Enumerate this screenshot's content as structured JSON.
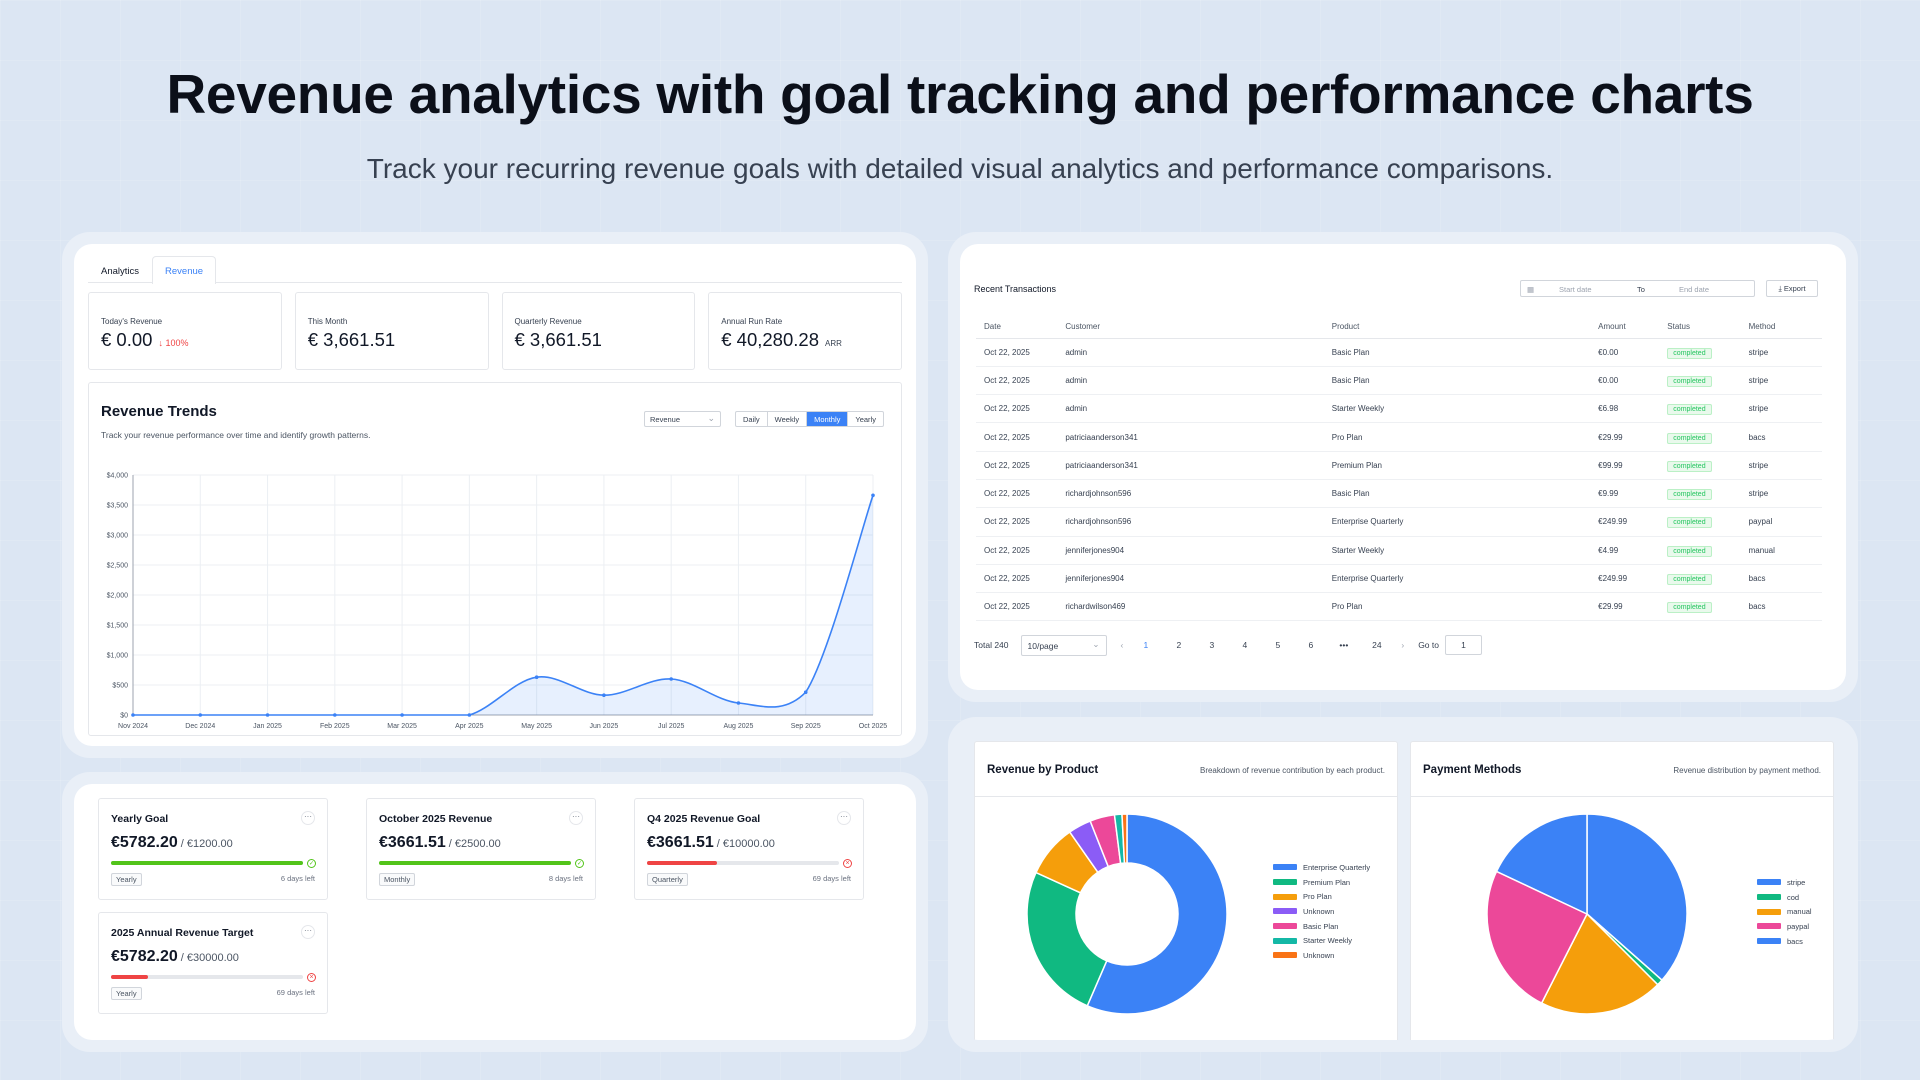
{
  "hero": {
    "title": "Revenue analytics with goal tracking and performance charts",
    "subtitle": "Track your recurring revenue goals with detailed visual analytics and performance comparisons."
  },
  "analytics": {
    "tabs": [
      "Analytics",
      "Revenue"
    ],
    "active_tab": "Revenue",
    "kpis": [
      {
        "label": "Today's Revenue",
        "value": "€ 0.00",
        "change": "↓ 100%"
      },
      {
        "label": "This Month",
        "value": "€ 3,661.51"
      },
      {
        "label": "Quarterly Revenue",
        "value": "€ 3,661.51"
      },
      {
        "label": "Annual Run Rate",
        "value": "€ 40,280.28",
        "suffix": "ARR"
      }
    ],
    "trend": {
      "title": "Revenue Trends",
      "description": "Track your revenue performance over time and identify growth patterns.",
      "metric_select": "Revenue",
      "periods": [
        "Daily",
        "Weekly",
        "Monthly",
        "Yearly"
      ],
      "active_period": "Monthly"
    }
  },
  "chart_data": {
    "type": "area",
    "title": "Revenue Trends",
    "x": [
      "Nov 2024",
      "Dec 2024",
      "Jan 2025",
      "Feb 2025",
      "Mar 2025",
      "Apr 2025",
      "May 2025",
      "Jun 2025",
      "Jul 2025",
      "Aug 2025",
      "Sep 2025",
      "Oct 2025"
    ],
    "values": [
      0,
      0,
      0,
      0,
      0,
      0,
      630,
      330,
      600,
      200,
      380,
      3661.51
    ],
    "yticks": [
      "$0",
      "$500",
      "$1,000",
      "$1,500",
      "$2,000",
      "$2,500",
      "$3,000",
      "$3,500",
      "$4,000"
    ],
    "ylim": [
      0,
      4000
    ],
    "grid": true,
    "color": "#3b82f6"
  },
  "goals": [
    {
      "title": "Yearly Goal",
      "current": "€5782.20",
      "target": "€1200.00",
      "progress": 1.0,
      "status": "done",
      "period": "Yearly",
      "left": "6 days left",
      "color": "#52c41a"
    },
    {
      "title": "October 2025 Revenue",
      "current": "€3661.51",
      "target": "€2500.00",
      "progress": 1.0,
      "status": "done",
      "period": "Monthly",
      "left": "8 days left",
      "color": "#52c41a"
    },
    {
      "title": "Q4 2025 Revenue Goal",
      "current": "€3661.51",
      "target": "€10000.00",
      "progress": 0.366,
      "status": "behind",
      "period": "Quarterly",
      "left": "69 days left",
      "color": "#ef4444"
    },
    {
      "title": "2025 Annual Revenue Target",
      "current": "€5782.20",
      "target": "€30000.00",
      "progress": 0.193,
      "status": "behind",
      "period": "Yearly",
      "left": "69 days left",
      "color": "#ef4444"
    }
  ],
  "transactions": {
    "title": "Recent Transactions",
    "start_placeholder": "Start date",
    "to": "To",
    "end_placeholder": "End date",
    "export_label": "⤓ Export",
    "columns": [
      "Date",
      "Customer",
      "Product",
      "Amount",
      "Status",
      "Method"
    ],
    "rows": [
      [
        "Oct 22, 2025",
        "admin",
        "Basic Plan",
        "€0.00",
        "completed",
        "stripe"
      ],
      [
        "Oct 22, 2025",
        "admin",
        "Basic Plan",
        "€0.00",
        "completed",
        "stripe"
      ],
      [
        "Oct 22, 2025",
        "admin",
        "Starter Weekly",
        "€6.98",
        "completed",
        "stripe"
      ],
      [
        "Oct 22, 2025",
        "patriciaanderson341",
        "Pro Plan",
        "€29.99",
        "completed",
        "bacs"
      ],
      [
        "Oct 22, 2025",
        "patriciaanderson341",
        "Premium Plan",
        "€99.99",
        "completed",
        "stripe"
      ],
      [
        "Oct 22, 2025",
        "richardjohnson596",
        "Basic Plan",
        "€9.99",
        "completed",
        "stripe"
      ],
      [
        "Oct 22, 2025",
        "richardjohnson596",
        "Enterprise Quarterly",
        "€249.99",
        "completed",
        "paypal"
      ],
      [
        "Oct 22, 2025",
        "jenniferjones904",
        "Starter Weekly",
        "€4.99",
        "completed",
        "manual"
      ],
      [
        "Oct 22, 2025",
        "jenniferjones904",
        "Enterprise Quarterly",
        "€249.99",
        "completed",
        "bacs"
      ],
      [
        "Oct 22, 2025",
        "richardwilson469",
        "Pro Plan",
        "€29.99",
        "completed",
        "bacs"
      ]
    ],
    "pagination": {
      "total": "Total 240",
      "page_size": "10/page",
      "pages": [
        "1",
        "2",
        "3",
        "4",
        "5",
        "6",
        "•••",
        "24"
      ],
      "current": "1",
      "goto_label": "Go to",
      "goto_value": "1"
    }
  },
  "pies": [
    {
      "title": "Revenue by Product",
      "description": "Breakdown of revenue contribution by each product.",
      "type": "donut",
      "slices": [
        {
          "name": "Enterprise Quarterly",
          "value": 0.565,
          "color": "#3b82f6"
        },
        {
          "name": "Premium Plan",
          "value": 0.253,
          "color": "#10b981"
        },
        {
          "name": "Pro Plan",
          "value": 0.085,
          "color": "#f59e0b"
        },
        {
          "name": "Unknown",
          "value": 0.037,
          "color": "#8b5cf6"
        },
        {
          "name": "Basic Plan",
          "value": 0.04,
          "color": "#ec4899"
        },
        {
          "name": "Starter Weekly",
          "value": 0.012,
          "color": "#14b8a6"
        },
        {
          "name": "Unknown",
          "value": 0.008,
          "color": "#f97316"
        }
      ]
    },
    {
      "title": "Payment Methods",
      "description": "Revenue distribution by payment method.",
      "type": "pie",
      "slices": [
        {
          "name": "stripe",
          "value": 0.365,
          "color": "#3b82f6"
        },
        {
          "name": "cod",
          "value": 0.01,
          "color": "#10b981"
        },
        {
          "name": "manual",
          "value": 0.2,
          "color": "#f59e0b"
        },
        {
          "name": "paypal",
          "value": 0.245,
          "color": "#ec4899"
        },
        {
          "name": "bacs",
          "value": 0.18,
          "color": "#3b82f6"
        }
      ]
    }
  ]
}
